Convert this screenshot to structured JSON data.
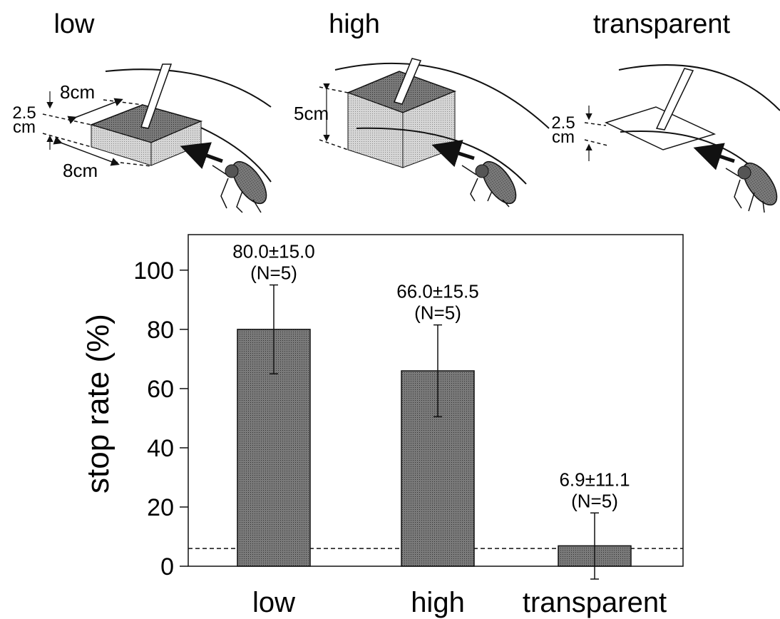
{
  "panels": [
    {
      "title": "low",
      "dims": {
        "width": "8cm",
        "depth": "8cm",
        "height_top": "2.5",
        "height_bottom": "cm"
      }
    },
    {
      "title": "high",
      "dims": {
        "height": "5cm"
      }
    },
    {
      "title": "transparent",
      "dims": {
        "height_top": "2.5",
        "height_bottom": "cm"
      }
    }
  ],
  "chart_data": {
    "type": "bar",
    "categories": [
      "low",
      "high",
      "transparent"
    ],
    "values": [
      80.0,
      66.0,
      6.9
    ],
    "errors": [
      15.0,
      15.5,
      11.1
    ],
    "annotations": [
      {
        "value_text": "80.0±15.0",
        "n_text": "(N=5)"
      },
      {
        "value_text": "66.0±15.5",
        "n_text": "(N=5)"
      },
      {
        "value_text": "6.9±11.1",
        "n_text": "(N=5)"
      }
    ],
    "baseline": 6.0,
    "xlabel": "",
    "ylabel": "stop rate (%)",
    "ylim": [
      0,
      112
    ],
    "yticks": [
      0,
      20,
      40,
      60,
      80,
      100
    ],
    "grid": false,
    "colors": {
      "bar": "#8c8c8c",
      "line": "#111111",
      "box_dark": "#6e6e6e",
      "box_light": "#c4c4c4"
    }
  }
}
